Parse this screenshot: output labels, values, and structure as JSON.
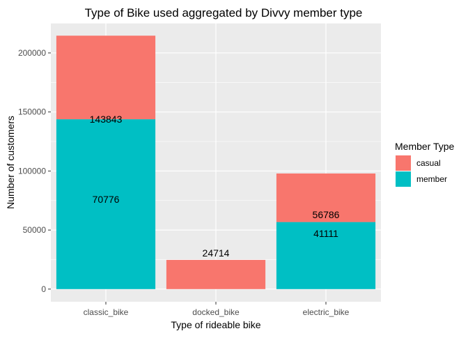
{
  "chart_data": {
    "type": "bar",
    "stacked": true,
    "title": "Type of Bike used aggregated by Divvy member type",
    "xlabel": "Type of rideable bike",
    "ylabel": "Number of customers",
    "categories": [
      "classic_bike",
      "docked_bike",
      "electric_bike"
    ],
    "series": [
      {
        "name": "member",
        "color": "#00BFC4",
        "values": [
          143843,
          0,
          56786
        ]
      },
      {
        "name": "casual",
        "color": "#F8766D",
        "values": [
          70776,
          24714,
          41111
        ]
      }
    ],
    "data_labels": [
      {
        "category": "classic_bike",
        "text": "143843",
        "y": 143843
      },
      {
        "category": "classic_bike",
        "text": "70776",
        "y": 76000
      },
      {
        "category": "docked_bike",
        "text": "24714",
        "y": 30500
      },
      {
        "category": "electric_bike",
        "text": "56786",
        "y": 63000
      },
      {
        "category": "electric_bike",
        "text": "41111",
        "y": 47000
      }
    ],
    "yticks": [
      0,
      50000,
      100000,
      150000,
      200000
    ],
    "ytick_labels": [
      "0",
      "50000",
      "100000",
      "150000",
      "200000"
    ],
    "ylim": [
      -10731,
      225350
    ],
    "grid": true,
    "legend": {
      "title": "Member Type",
      "position": "right",
      "entries": [
        {
          "label": "casual",
          "color": "#F8766D"
        },
        {
          "label": "member",
          "color": "#00BFC4"
        }
      ]
    },
    "panel_background": "#EBEBEB",
    "grid_color": "#FFFFFF"
  }
}
